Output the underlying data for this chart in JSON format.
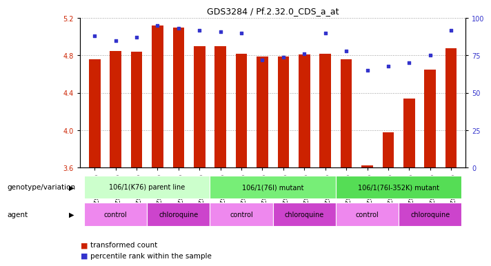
{
  "title": "GDS3284 / Pf.2.32.0_CDS_a_at",
  "samples": [
    "GSM253220",
    "GSM253221",
    "GSM253222",
    "GSM253223",
    "GSM253224",
    "GSM253225",
    "GSM253226",
    "GSM253227",
    "GSM253228",
    "GSM253229",
    "GSM253230",
    "GSM253231",
    "GSM253232",
    "GSM253233",
    "GSM253234",
    "GSM253235",
    "GSM253236",
    "GSM253237"
  ],
  "transformed_count": [
    4.76,
    4.85,
    4.84,
    5.12,
    5.1,
    4.9,
    4.9,
    4.82,
    4.79,
    4.79,
    4.81,
    4.82,
    4.76,
    3.62,
    3.98,
    4.34,
    4.65,
    4.88
  ],
  "percentile_rank": [
    88,
    85,
    87,
    95,
    93,
    92,
    91,
    90,
    72,
    74,
    76,
    90,
    78,
    65,
    68,
    70,
    75,
    92
  ],
  "ylim_left": [
    3.6,
    5.2
  ],
  "ylim_right": [
    0,
    100
  ],
  "yticks_left": [
    3.6,
    4.0,
    4.4,
    4.8,
    5.2
  ],
  "yticks_right": [
    0,
    25,
    50,
    75,
    100
  ],
  "bar_color": "#cc2200",
  "dot_color": "#3333cc",
  "bar_bottom": 3.6,
  "genotype_groups": [
    {
      "label": "106/1(K76) parent line",
      "start": 0,
      "end": 6,
      "color": "#ccffcc"
    },
    {
      "label": "106/1(76I) mutant",
      "start": 6,
      "end": 12,
      "color": "#77ee77"
    },
    {
      "label": "106/1(76I-352K) mutant",
      "start": 12,
      "end": 18,
      "color": "#55dd55"
    }
  ],
  "agent_groups": [
    {
      "label": "control",
      "start": 0,
      "end": 3,
      "color": "#ee88ee"
    },
    {
      "label": "chloroquine",
      "start": 3,
      "end": 6,
      "color": "#cc44cc"
    },
    {
      "label": "control",
      "start": 6,
      "end": 9,
      "color": "#ee88ee"
    },
    {
      "label": "chloroquine",
      "start": 9,
      "end": 12,
      "color": "#cc44cc"
    },
    {
      "label": "control",
      "start": 12,
      "end": 15,
      "color": "#ee88ee"
    },
    {
      "label": "chloroquine",
      "start": 15,
      "end": 18,
      "color": "#cc44cc"
    }
  ],
  "bg_color": "#ffffff",
  "grid_color": "#999999",
  "row_label_genotype": "genotype/variation",
  "row_label_agent": "agent",
  "legend_bar_label": "transformed count",
  "legend_dot_label": "percentile rank within the sample"
}
